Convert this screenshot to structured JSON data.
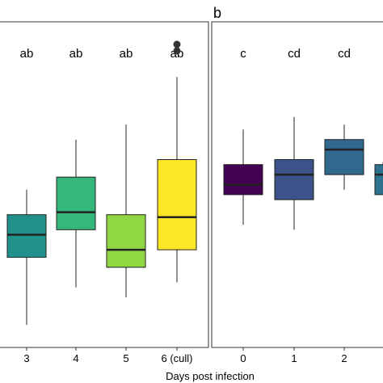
{
  "chart_data": [
    {
      "type": "box",
      "panel_label": "",
      "xlabel": "Days post infection",
      "ylabel": "",
      "ylim": [
        -2.5,
        4.0
      ],
      "categories": [
        "3",
        "4",
        "5",
        "6 (cull)"
      ],
      "colors": [
        "#21918c",
        "#35b779",
        "#90d743",
        "#fde725"
      ],
      "significance": [
        "ab",
        "ab",
        "ab",
        "ab"
      ],
      "boxes": [
        {
          "whisker_low": -2.05,
          "q1": -0.7,
          "median": -0.25,
          "q3": 0.15,
          "whisker_high": 0.65
        },
        {
          "whisker_low": -1.3,
          "q1": -0.15,
          "median": 0.2,
          "q3": 0.9,
          "whisker_high": 1.65
        },
        {
          "whisker_low": -1.5,
          "q1": -0.9,
          "median": -0.55,
          "q3": 0.15,
          "whisker_high": 1.95
        },
        {
          "whisker_low": -1.2,
          "q1": -0.55,
          "median": 0.1,
          "q3": 1.25,
          "whisker_high": 2.9
        }
      ],
      "outliers": [
        {
          "category": "6 (cull)",
          "value": 3.55
        },
        {
          "category": "6 (cull)",
          "value": 3.42
        }
      ]
    },
    {
      "type": "box",
      "panel_label": "b",
      "xlabel": "",
      "ylabel": "",
      "ylim": [
        -2.5,
        4.0
      ],
      "categories": [
        "0",
        "1",
        "2"
      ],
      "colors": [
        "#440154",
        "#3b528b",
        "#31688e"
      ],
      "significance": [
        "c",
        "cd",
        "cd"
      ],
      "boxes": [
        {
          "whisker_low": -0.05,
          "q1": 0.55,
          "median": 0.75,
          "q3": 1.15,
          "whisker_high": 1.85
        },
        {
          "whisker_low": -0.15,
          "q1": 0.45,
          "median": 0.95,
          "q3": 1.25,
          "whisker_high": 2.1
        },
        {
          "whisker_low": 0.65,
          "q1": 0.95,
          "median": 1.45,
          "q3": 1.65,
          "whisker_high": 1.95
        }
      ],
      "partial_box": {
        "color": "#2c728e",
        "q1": 0.55,
        "median": 0.95,
        "q3": 1.15,
        "whisker_high": 1.2
      }
    }
  ]
}
